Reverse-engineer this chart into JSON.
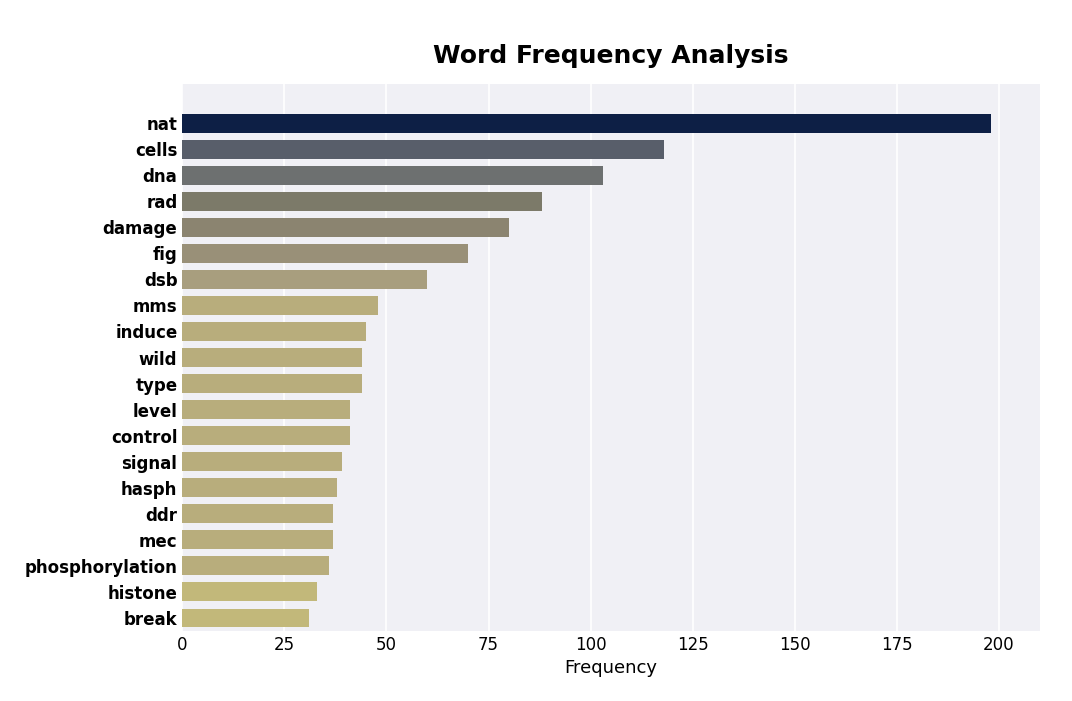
{
  "title": "Word Frequency Analysis",
  "xlabel": "Frequency",
  "categories": [
    "nat",
    "cells",
    "dna",
    "rad",
    "damage",
    "fig",
    "dsb",
    "mms",
    "induce",
    "wild",
    "type",
    "level",
    "control",
    "signal",
    "hasph",
    "ddr",
    "mec",
    "phosphorylation",
    "histone",
    "break"
  ],
  "values": [
    198,
    118,
    103,
    88,
    80,
    70,
    60,
    48,
    45,
    44,
    44,
    41,
    41,
    39,
    38,
    37,
    37,
    36,
    33,
    31
  ],
  "bar_colors": [
    "#0d1f45",
    "#585e6a",
    "#6d7070",
    "#7c7a69",
    "#8b8470",
    "#999078",
    "#a89e7e",
    "#b8ad7c",
    "#b8ad7c",
    "#b8ad7c",
    "#b8ad7c",
    "#b8ad7c",
    "#b8ad7c",
    "#b8ad7c",
    "#b8ad7c",
    "#b8ad7c",
    "#b8ad7c",
    "#b8ad7c",
    "#c2b87a",
    "#c2b87a"
  ],
  "figure_bg": "#ffffff",
  "axes_bg": "#f0f0f5",
  "title_fontsize": 18,
  "label_fontsize": 12,
  "xlabel_fontsize": 13,
  "xlim": [
    0,
    210
  ],
  "xticks": [
    0,
    25,
    50,
    75,
    100,
    125,
    150,
    175,
    200
  ],
  "bar_height": 0.72
}
